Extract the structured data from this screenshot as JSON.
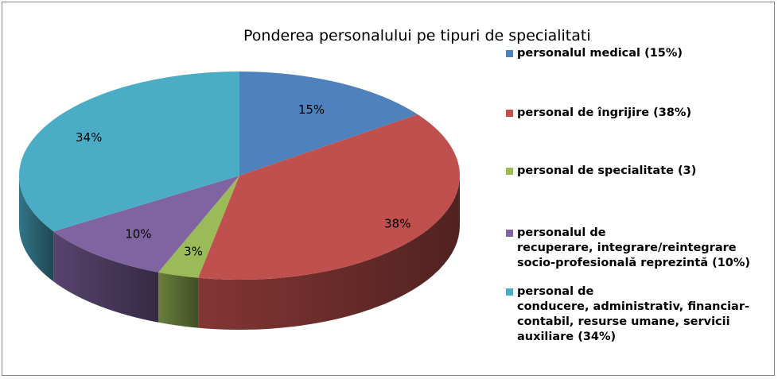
{
  "chart_data": {
    "type": "pie",
    "title": "Ponderea personalului pe tipuri de specialitati",
    "categories": [
      "personalul medical (15%)",
      "personal de îngrijire (38%)",
      "personal de specialitate (3)",
      "personalul de recuperare, integrare/reintegrare socio-profesională reprezintă (10%)",
      "personal de conducere, administrativ, financiar-contabil, resurse umane, servicii auxiliare (34%)"
    ],
    "values": [
      15,
      38,
      3,
      10,
      34
    ],
    "data_labels": [
      "15%",
      "38%",
      "3%",
      "10%",
      "34%"
    ],
    "colors": [
      "#4F81BD",
      "#C0504D",
      "#9BBB59",
      "#8064A2",
      "#4BACC6"
    ],
    "legend_position": "right",
    "style": "3d-pie"
  },
  "legend": [
    {
      "text": "personalul medical (15%)"
    },
    {
      "text": "personal de îngrijire (38%)"
    },
    {
      "text": "personal de specialitate (3)"
    },
    {
      "text": "personalul de\nrecuperare, integrare/reintegrare\nsocio-profesională reprezintă (10%)"
    },
    {
      "text": "personal de\nconducere, administrativ, financiar-\ncontabil, resurse umane, servicii\nauxiliare (34%)"
    }
  ]
}
